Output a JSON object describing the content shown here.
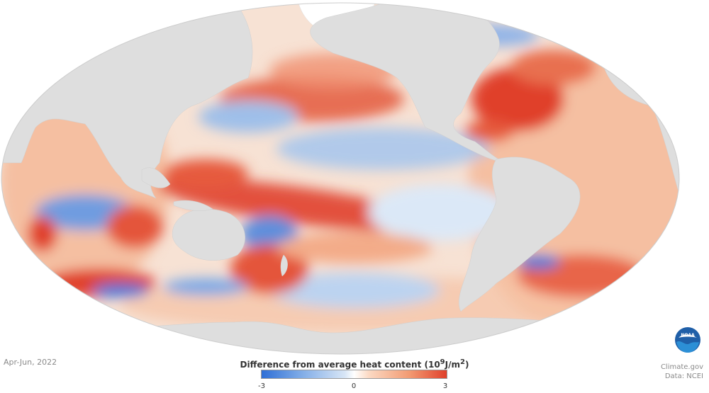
{
  "map": {
    "projection": "Mollweide",
    "land_color": "#dedede",
    "ocean_neutral_color": "#ffffff",
    "warm_color": "#e0402b",
    "cool_color": "#2f6fd6"
  },
  "date_label": "Apr-Jun, 2022",
  "legend": {
    "title_text": "Difference from average heat content (10",
    "title_exp1": "9",
    "title_unit": "J/m",
    "title_exp2": "2",
    "title_close": ")",
    "min": "-3",
    "mid": "0",
    "max": "3",
    "colors": [
      "#2f6fd6",
      "#7aa8e6",
      "#ffffff",
      "#f29a72",
      "#e0402b"
    ]
  },
  "credit": {
    "site": "Climate.gov",
    "data": "Data: NCEI"
  },
  "logo": {
    "text": "NOAA",
    "icon": "noaa-logo-icon"
  }
}
